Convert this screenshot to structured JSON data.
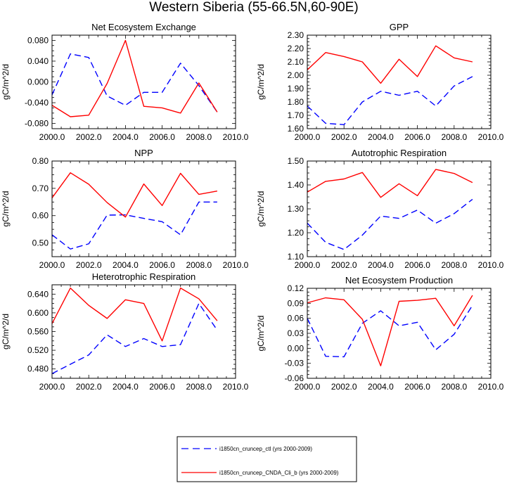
{
  "figure_title": "Western Siberia (55-66.5N,60-90E)",
  "legend": {
    "entries": [
      {
        "label": "i1850cn_cruncep_ctl (yrs 2000-2009)",
        "color": "#0000ff",
        "dash": "dashed"
      },
      {
        "label": "i1850cn_cruncep_CNDA_Cli_b (yrs 2000-2009)",
        "color": "#ff0000",
        "dash": "solid"
      }
    ]
  },
  "chart_data": [
    {
      "type": "line",
      "title": "Net Ecosystem Exchange",
      "ylabel": "gC/m^2/d",
      "x": [
        2000,
        2001,
        2002,
        2003,
        2004,
        2005,
        2006,
        2007,
        2008,
        2009
      ],
      "xlim": [
        2000,
        2010
      ],
      "xticks": [
        "2000.0",
        "2002.0",
        "2004.0",
        "2006.0",
        "2008.0",
        "2010.0"
      ],
      "ylim": [
        -0.09,
        0.09
      ],
      "yticks": [
        "-0.080",
        "-0.040",
        "0.000",
        "0.040",
        "0.080"
      ],
      "series": [
        {
          "name": "i1850cn_cruncep_ctl (yrs 2000-2009)",
          "values": [
            -0.025,
            0.054,
            0.047,
            -0.027,
            -0.045,
            -0.02,
            -0.02,
            0.036,
            -0.007,
            -0.058
          ]
        },
        {
          "name": "i1850cn_cruncep_CNDA_Cli_b (yrs 2000-2009)",
          "values": [
            -0.045,
            -0.067,
            -0.064,
            -0.003,
            0.08,
            -0.047,
            -0.05,
            -0.06,
            -0.002,
            -0.058
          ]
        }
      ]
    },
    {
      "type": "line",
      "title": "GPP",
      "ylabel": "gC/m^2/d",
      "x": [
        2000,
        2001,
        2002,
        2003,
        2004,
        2005,
        2006,
        2007,
        2008,
        2009
      ],
      "xlim": [
        2000,
        2010
      ],
      "xticks": [
        "2000.0",
        "2002.0",
        "2004.0",
        "2006.0",
        "2008.0",
        "2010.0"
      ],
      "ylim": [
        1.6,
        2.3
      ],
      "yticks": [
        "1.60",
        "1.70",
        "1.80",
        "1.90",
        "2.00",
        "2.10",
        "2.20",
        "2.30"
      ],
      "series": [
        {
          "name": "i1850cn_cruncep_ctl (yrs 2000-2009)",
          "values": [
            1.77,
            1.64,
            1.63,
            1.8,
            1.88,
            1.85,
            1.88,
            1.77,
            1.92,
            1.99
          ]
        },
        {
          "name": "i1850cn_cruncep_CNDA_Cli_b (yrs 2000-2009)",
          "values": [
            2.04,
            2.17,
            2.14,
            2.1,
            1.94,
            2.12,
            1.99,
            2.22,
            2.13,
            2.1
          ]
        }
      ]
    },
    {
      "type": "line",
      "title": "NPP",
      "ylabel": "gC/m^2/d",
      "x": [
        2000,
        2001,
        2002,
        2003,
        2004,
        2005,
        2006,
        2007,
        2008,
        2009
      ],
      "xlim": [
        2000,
        2010
      ],
      "xticks": [
        "2000.0",
        "2002.0",
        "2004.0",
        "2006.0",
        "2008.0",
        "2010.0"
      ],
      "ylim": [
        0.45,
        0.8
      ],
      "yticks": [
        "0.50",
        "0.60",
        "0.70",
        "0.80"
      ],
      "series": [
        {
          "name": "i1850cn_cruncep_ctl (yrs 2000-2009)",
          "values": [
            0.53,
            0.478,
            0.497,
            0.602,
            0.603,
            0.59,
            0.578,
            0.53,
            0.65,
            0.65
          ]
        },
        {
          "name": "i1850cn_cruncep_CNDA_Cli_b (yrs 2000-2009)",
          "values": [
            0.665,
            0.757,
            0.715,
            0.648,
            0.595,
            0.716,
            0.637,
            0.755,
            0.678,
            0.69
          ]
        }
      ]
    },
    {
      "type": "line",
      "title": "Autotrophic Respiration",
      "ylabel": "gC/m^2/d",
      "x": [
        2000,
        2001,
        2002,
        2003,
        2004,
        2005,
        2006,
        2007,
        2008,
        2009
      ],
      "xlim": [
        2000,
        2010
      ],
      "xticks": [
        "2000.0",
        "2002.0",
        "2004.0",
        "2006.0",
        "2008.0",
        "2010.0"
      ],
      "ylim": [
        1.1,
        1.5
      ],
      "yticks": [
        "1.10",
        "1.20",
        "1.30",
        "1.40",
        "1.50"
      ],
      "series": [
        {
          "name": "i1850cn_cruncep_ctl (yrs 2000-2009)",
          "values": [
            1.24,
            1.16,
            1.13,
            1.19,
            1.27,
            1.26,
            1.295,
            1.24,
            1.28,
            1.34
          ]
        },
        {
          "name": "i1850cn_cruncep_CNDA_Cli_b (yrs 2000-2009)",
          "values": [
            1.37,
            1.415,
            1.425,
            1.452,
            1.348,
            1.405,
            1.355,
            1.465,
            1.448,
            1.41
          ]
        }
      ]
    },
    {
      "type": "line",
      "title": "Heterotrophic Respiration",
      "ylabel": "gC/m^2/d",
      "x": [
        2000,
        2001,
        2002,
        2003,
        2004,
        2005,
        2006,
        2007,
        2008,
        2009
      ],
      "xlim": [
        2000,
        2010
      ],
      "xticks": [
        "2000.0",
        "2002.0",
        "2004.0",
        "2006.0",
        "2008.0",
        "2010.0"
      ],
      "ylim": [
        0.46,
        0.66
      ],
      "yticks": [
        "0.480",
        "0.520",
        "0.560",
        "0.600",
        "0.640"
      ],
      "series": [
        {
          "name": "i1850cn_cruncep_ctl (yrs 2000-2009)",
          "values": [
            0.47,
            0.49,
            0.51,
            0.553,
            0.528,
            0.545,
            0.528,
            0.532,
            0.62,
            0.563
          ]
        },
        {
          "name": "i1850cn_cruncep_CNDA_Cli_b (yrs 2000-2009)",
          "values": [
            0.577,
            0.653,
            0.616,
            0.588,
            0.628,
            0.62,
            0.54,
            0.653,
            0.63,
            0.583
          ]
        }
      ]
    },
    {
      "type": "line",
      "title": "Net Ecosystem Production",
      "ylabel": "gC/m^2/d",
      "x": [
        2000,
        2001,
        2002,
        2003,
        2004,
        2005,
        2006,
        2007,
        2008,
        2009
      ],
      "xlim": [
        2000,
        2010
      ],
      "xticks": [
        "2000.0",
        "2002.0",
        "2004.0",
        "2006.0",
        "2008.0",
        "2010.0"
      ],
      "ylim": [
        -0.06,
        0.12
      ],
      "yticks": [
        "-0.06",
        "-0.03",
        "0.00",
        "0.03",
        "0.06",
        "0.09",
        "0.12"
      ],
      "series": [
        {
          "name": "i1850cn_cruncep_ctl (yrs 2000-2009)",
          "values": [
            0.06,
            -0.016,
            -0.017,
            0.05,
            0.075,
            0.045,
            0.052,
            -0.003,
            0.028,
            0.086
          ]
        },
        {
          "name": "i1850cn_cruncep_CNDA_Cli_b (yrs 2000-2009)",
          "values": [
            0.091,
            0.101,
            0.097,
            0.058,
            -0.035,
            0.094,
            0.096,
            0.1,
            0.045,
            0.106
          ]
        }
      ]
    }
  ]
}
